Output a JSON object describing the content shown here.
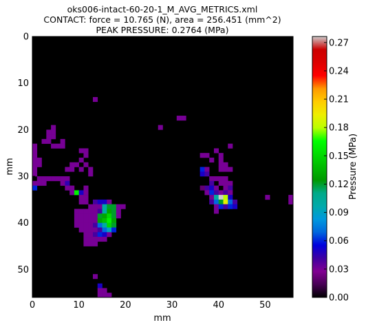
{
  "chart_data": {
    "type": "heatmap",
    "title": [
      "oks006-intact-60-20-1_M_AVG_METRICS.xml",
      "CONTACT: force = 10.765 (N), area = 256.451 (mm^2)",
      "PEAK PRESSURE: 0.2764 (MPa)"
    ],
    "xlabel": "mm",
    "ylabel": "mm",
    "colorbar_label": "Pressure (MPa)",
    "x_range": [
      0,
      56
    ],
    "y_range": [
      0,
      56
    ],
    "x_ticks": [
      "0",
      "10",
      "20",
      "30",
      "40",
      "50"
    ],
    "y_ticks": [
      "0",
      "10",
      "20",
      "30",
      "40",
      "50"
    ],
    "colorbar_ticks": [
      "0.00",
      "0.03",
      "0.06",
      "0.09",
      "0.12",
      "0.15",
      "0.18",
      "0.21",
      "0.24",
      "0.27"
    ],
    "value_range": [
      0,
      0.2764
    ],
    "colormap": "nipy_spectral",
    "background_color": "#000000",
    "cell_size_mm": 1,
    "cells": [
      [
        13,
        13,
        0.03
      ],
      [
        32,
        17,
        0.03
      ],
      [
        31,
        17,
        0.03
      ],
      [
        27,
        19,
        0.03
      ],
      [
        4,
        19,
        0.03
      ],
      [
        4,
        20,
        0.03
      ],
      [
        3,
        20,
        0.03
      ],
      [
        3,
        21,
        0.03
      ],
      [
        4,
        21,
        0.03
      ],
      [
        3,
        22,
        0.03
      ],
      [
        2,
        22,
        0.03
      ],
      [
        4,
        23,
        0.03
      ],
      [
        0,
        23,
        0.03
      ],
      [
        0,
        24,
        0.03
      ],
      [
        0,
        25,
        0.03
      ],
      [
        0,
        26,
        0.03
      ],
      [
        1,
        26,
        0.03
      ],
      [
        1,
        27,
        0.03
      ],
      [
        0,
        27,
        0.03
      ],
      [
        0,
        28,
        0.03
      ],
      [
        0,
        29,
        0.03
      ],
      [
        5,
        23,
        0.03
      ],
      [
        6,
        22,
        0.03
      ],
      [
        6,
        23,
        0.03
      ],
      [
        11,
        24,
        0.03
      ],
      [
        10,
        24,
        0.03
      ],
      [
        11,
        25,
        0.03
      ],
      [
        10,
        26,
        0.03
      ],
      [
        9,
        27,
        0.03
      ],
      [
        8,
        27,
        0.03
      ],
      [
        7,
        28,
        0.03
      ],
      [
        8,
        28,
        0.03
      ],
      [
        11,
        27,
        0.03
      ],
      [
        10,
        28,
        0.03
      ],
      [
        12,
        28,
        0.03
      ],
      [
        12,
        29,
        0.03
      ],
      [
        1,
        30,
        0.03
      ],
      [
        2,
        30,
        0.03
      ],
      [
        3,
        30,
        0.03
      ],
      [
        4,
        30,
        0.03
      ],
      [
        5,
        30,
        0.03
      ],
      [
        6,
        30,
        0.03
      ],
      [
        7,
        30,
        0.03
      ],
      [
        2,
        31,
        0.03
      ],
      [
        1,
        31,
        0.03
      ],
      [
        0,
        31,
        0.03
      ],
      [
        6,
        31,
        0.03
      ],
      [
        7,
        31,
        0.045
      ],
      [
        0,
        32,
        0.06
      ],
      [
        7,
        32,
        0.03
      ],
      [
        8,
        32,
        0.03
      ],
      [
        8,
        33,
        0.03
      ],
      [
        9,
        33,
        0.16
      ],
      [
        10,
        33,
        0.05
      ],
      [
        11,
        33,
        0.03
      ],
      [
        11,
        32,
        0.03
      ],
      [
        10,
        34,
        0.03
      ],
      [
        11,
        34,
        0.03
      ],
      [
        10,
        35,
        0.03
      ],
      [
        11,
        35,
        0.03
      ],
      [
        13,
        35,
        0.04
      ],
      [
        14,
        35,
        0.05
      ],
      [
        15,
        35,
        0.05
      ],
      [
        16,
        35,
        0.03
      ],
      [
        12,
        36,
        0.03
      ],
      [
        13,
        36,
        0.03
      ],
      [
        14,
        36,
        0.03
      ],
      [
        15,
        36,
        0.1
      ],
      [
        16,
        36,
        0.12
      ],
      [
        17,
        36,
        0.12
      ],
      [
        18,
        36,
        0.03
      ],
      [
        19,
        36,
        0.03
      ],
      [
        9,
        37,
        0.03
      ],
      [
        10,
        37,
        0.03
      ],
      [
        11,
        37,
        0.03
      ],
      [
        12,
        37,
        0.03
      ],
      [
        13,
        37,
        0.03
      ],
      [
        14,
        37,
        0.04
      ],
      [
        15,
        37,
        0.1
      ],
      [
        16,
        37,
        0.13
      ],
      [
        17,
        37,
        0.12
      ],
      [
        18,
        37,
        0.03
      ],
      [
        9,
        38,
        0.03
      ],
      [
        10,
        38,
        0.03
      ],
      [
        11,
        38,
        0.03
      ],
      [
        12,
        38,
        0.03
      ],
      [
        13,
        38,
        0.03
      ],
      [
        14,
        38,
        0.12
      ],
      [
        15,
        38,
        0.13
      ],
      [
        16,
        38,
        0.15
      ],
      [
        17,
        38,
        0.12
      ],
      [
        18,
        38,
        0.03
      ],
      [
        9,
        39,
        0.03
      ],
      [
        10,
        39,
        0.03
      ],
      [
        11,
        39,
        0.03
      ],
      [
        12,
        39,
        0.03
      ],
      [
        13,
        39,
        0.03
      ],
      [
        14,
        39,
        0.13
      ],
      [
        15,
        39,
        0.14
      ],
      [
        16,
        39,
        0.16
      ],
      [
        17,
        39,
        0.13
      ],
      [
        9,
        40,
        0.03
      ],
      [
        10,
        40,
        0.03
      ],
      [
        11,
        40,
        0.03
      ],
      [
        12,
        40,
        0.03
      ],
      [
        13,
        40,
        0.04
      ],
      [
        14,
        40,
        0.07
      ],
      [
        15,
        40,
        0.1
      ],
      [
        16,
        40,
        0.15
      ],
      [
        17,
        40,
        0.12
      ],
      [
        10,
        41,
        0.03
      ],
      [
        11,
        41,
        0.03
      ],
      [
        12,
        41,
        0.03
      ],
      [
        13,
        41,
        0.03
      ],
      [
        14,
        41,
        0.04
      ],
      [
        15,
        41,
        0.07
      ],
      [
        16,
        41,
        0.09
      ],
      [
        17,
        41,
        0.06
      ],
      [
        11,
        42,
        0.03
      ],
      [
        12,
        42,
        0.03
      ],
      [
        13,
        42,
        0.04
      ],
      [
        14,
        42,
        0.06
      ],
      [
        15,
        42,
        0.05
      ],
      [
        16,
        42,
        0.03
      ],
      [
        11,
        43,
        0.03
      ],
      [
        12,
        43,
        0.03
      ],
      [
        13,
        43,
        0.03
      ],
      [
        14,
        43,
        0.03
      ],
      [
        15,
        43,
        0.03
      ],
      [
        11,
        44,
        0.03
      ],
      [
        12,
        44,
        0.03
      ],
      [
        13,
        44,
        0.03
      ],
      [
        13,
        51,
        0.03
      ],
      [
        14,
        53,
        0.05
      ],
      [
        14,
        54,
        0.03
      ],
      [
        15,
        54,
        0.03
      ],
      [
        14,
        55,
        0.03
      ],
      [
        15,
        55,
        0.03
      ],
      [
        16,
        55,
        0.03
      ],
      [
        42,
        23,
        0.03
      ],
      [
        39,
        24,
        0.03
      ],
      [
        40,
        25,
        0.03
      ],
      [
        40,
        26,
        0.03
      ],
      [
        40,
        27,
        0.03
      ],
      [
        41,
        27,
        0.03
      ],
      [
        40,
        28,
        0.03
      ],
      [
        41,
        28,
        0.03
      ],
      [
        42,
        28,
        0.03
      ],
      [
        36,
        25,
        0.03
      ],
      [
        37,
        25,
        0.03
      ],
      [
        38,
        26,
        0.03
      ],
      [
        36,
        28,
        0.06
      ],
      [
        37,
        28,
        0.03
      ],
      [
        36,
        29,
        0.05
      ],
      [
        37,
        29,
        0.04
      ],
      [
        38,
        30,
        0.03
      ],
      [
        38,
        31,
        0.04
      ],
      [
        39,
        30,
        0.03
      ],
      [
        40,
        30,
        0.03
      ],
      [
        40,
        31,
        0.03
      ],
      [
        41,
        30,
        0.03
      ],
      [
        41,
        31,
        0.03
      ],
      [
        42,
        31,
        0.03
      ],
      [
        41,
        32,
        0.03
      ],
      [
        37,
        32,
        0.04
      ],
      [
        38,
        32,
        0.05
      ],
      [
        39,
        32,
        0.03
      ],
      [
        42,
        32,
        0.04
      ],
      [
        37,
        33,
        0.03
      ],
      [
        38,
        33,
        0.06
      ],
      [
        39,
        33,
        0.04
      ],
      [
        40,
        33,
        0.03
      ],
      [
        41,
        33,
        0.04
      ],
      [
        42,
        33,
        0.03
      ],
      [
        38,
        34,
        0.03
      ],
      [
        39,
        34,
        0.1
      ],
      [
        40,
        34,
        0.2764
      ],
      [
        41,
        34,
        0.18
      ],
      [
        42,
        34,
        0.05
      ],
      [
        38,
        35,
        0.04
      ],
      [
        39,
        35,
        0.07
      ],
      [
        40,
        35,
        0.12
      ],
      [
        41,
        35,
        0.19
      ],
      [
        42,
        35,
        0.07
      ],
      [
        43,
        35,
        0.04
      ],
      [
        39,
        36,
        0.03
      ],
      [
        40,
        36,
        0.06
      ],
      [
        41,
        36,
        0.04
      ],
      [
        42,
        36,
        0.06
      ],
      [
        43,
        36,
        0.05
      ],
      [
        36,
        32,
        0.02
      ],
      [
        39,
        37,
        0.03
      ],
      [
        50,
        34,
        0.03
      ],
      [
        55,
        34,
        0.03
      ],
      [
        55,
        35,
        0.03
      ]
    ]
  }
}
